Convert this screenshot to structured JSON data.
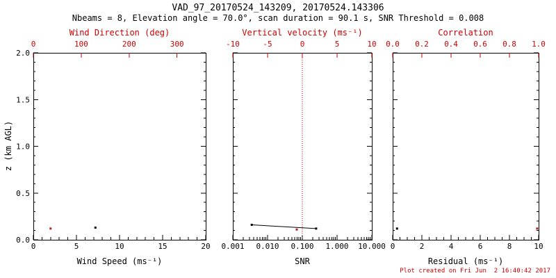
{
  "header": {
    "title": "VAD_97_20170524_143209, 20170524.143306",
    "subtitle": "Nbeams = 8, Elevation angle = 70.0°, scan duration = 90.1 s, SNR Threshold = 0.008"
  },
  "footer": {
    "created": "Plot created on Fri Jun  2 16:40:42 2017"
  },
  "colors": {
    "background": "#ffffff",
    "axis": "#000000",
    "secondary": "#cc0000",
    "marker_black": "#000000",
    "marker_red": "#b22222"
  },
  "chart_data": [
    {
      "type": "scatter",
      "name": "wind",
      "ylabel": "z (km AGL)",
      "ylim": [
        0.0,
        2.0
      ],
      "yticks": [
        0.0,
        0.5,
        1.0,
        1.5,
        2.0
      ],
      "ytick_labels": [
        "0.0",
        "0.5",
        "1.0",
        "1.5",
        "2.0"
      ],
      "y_minor_step": 0.1,
      "bottom_axis": {
        "label": "Wind Speed (ms⁻¹)",
        "lim": [
          0,
          20
        ],
        "ticks": [
          0,
          5,
          10,
          15,
          20
        ],
        "tick_labels": [
          "0",
          "5",
          "10",
          "15",
          "20"
        ],
        "minor_step": 1,
        "color": "black"
      },
      "top_axis": {
        "label": "Wind Direction (deg)",
        "lim": [
          0,
          360
        ],
        "ticks": [
          0,
          100,
          200,
          300
        ],
        "tick_labels": [
          "0",
          "100",
          "200",
          "300"
        ],
        "color": "red"
      },
      "series": [
        {
          "name": "wind-speed",
          "axis": "bottom",
          "color": "black",
          "marker": "square",
          "points": [
            {
              "x": 7.2,
              "y": 0.13
            }
          ]
        },
        {
          "name": "wind-direction",
          "axis": "top",
          "color": "red",
          "marker": "square",
          "points": [
            {
              "x": 36,
              "y": 0.12
            }
          ]
        }
      ]
    },
    {
      "type": "scatter",
      "name": "snr",
      "ylim": [
        0.0,
        2.0
      ],
      "yticks": [
        0.0,
        0.5,
        1.0,
        1.5,
        2.0
      ],
      "y_minor_step": 0.1,
      "bottom_axis": {
        "label": "SNR",
        "scale": "log",
        "lim": [
          0.001,
          10.0
        ],
        "ticks": [
          0.001,
          0.01,
          0.1,
          1.0,
          10.0
        ],
        "tick_labels": [
          "0.001",
          "0.010",
          "0.100",
          "1.000",
          "10.000"
        ],
        "log_minors": true,
        "color": "black"
      },
      "top_axis": {
        "label": "Vertical velocity (ms⁻¹)",
        "lim": [
          -10,
          10
        ],
        "ticks": [
          -10,
          -5,
          0,
          5,
          10
        ],
        "tick_labels": [
          "-10",
          "-5",
          "0",
          "5",
          "10"
        ],
        "color": "red"
      },
      "reference_line": {
        "axis": "top",
        "x": 0,
        "style": "dotted",
        "color": "red"
      },
      "series": [
        {
          "name": "snr-profile",
          "axis": "bottom",
          "color": "black",
          "marker": "square",
          "line": true,
          "points": [
            {
              "x": 0.0035,
              "y": 0.16
            },
            {
              "x": 0.25,
              "y": 0.12
            }
          ]
        },
        {
          "name": "vertical-velocity",
          "axis": "top",
          "color": "red",
          "marker": "square",
          "points": [
            {
              "x": -0.8,
              "y": 0.11
            }
          ]
        }
      ]
    },
    {
      "type": "scatter",
      "name": "residual",
      "ylim": [
        0.0,
        2.0
      ],
      "yticks": [
        0.0,
        0.5,
        1.0,
        1.5,
        2.0
      ],
      "y_minor_step": 0.1,
      "bottom_axis": {
        "label": "Residual (ms⁻¹)",
        "lim": [
          0,
          10
        ],
        "ticks": [
          0,
          2,
          4,
          6,
          8,
          10
        ],
        "tick_labels": [
          "0",
          "2",
          "4",
          "6",
          "8",
          "10"
        ],
        "minor_step": 0.5,
        "color": "black"
      },
      "top_axis": {
        "label": "Correlation",
        "lim": [
          0.0,
          1.0
        ],
        "ticks": [
          0.0,
          0.2,
          0.4,
          0.6,
          0.8,
          1.0
        ],
        "tick_labels": [
          "0.0",
          "0.2",
          "0.4",
          "0.6",
          "0.8",
          "1.0"
        ],
        "color": "red"
      },
      "series": [
        {
          "name": "residual-profile",
          "axis": "bottom",
          "color": "black",
          "marker": "square",
          "points": [
            {
              "x": 0.3,
              "y": 0.12
            }
          ]
        },
        {
          "name": "correlation",
          "axis": "top",
          "color": "red",
          "marker": "square",
          "points": [
            {
              "x": 0.99,
              "y": 0.12
            }
          ]
        }
      ]
    }
  ]
}
